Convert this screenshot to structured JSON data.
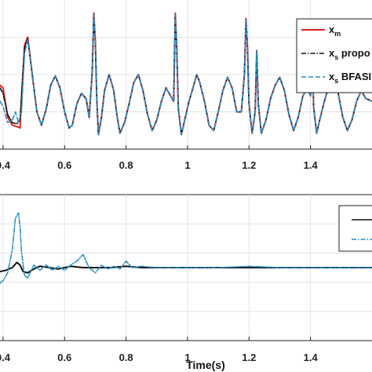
{
  "chart_data": [
    {
      "type": "line",
      "panel": "top",
      "title": "",
      "xlabel": "",
      "ylabel": "",
      "xlim": [
        0.39,
        1.6
      ],
      "ylim": [
        0,
        1
      ],
      "xticks": [
        0.4,
        0.6,
        0.8,
        1,
        1.2,
        1.4
      ],
      "xtick_labels": [
        "0.4",
        "0.6",
        "0.8",
        "1",
        "1.2",
        "1.4"
      ],
      "grid": true,
      "legend_position": "top-right",
      "legend": [
        {
          "main": "x",
          "sub": "m",
          "tail": ""
        },
        {
          "main": "x",
          "sub": "s",
          "tail": " propo"
        },
        {
          "main": "x",
          "sub": "s",
          "tail": " BFASI"
        }
      ],
      "series": [
        {
          "color": "#e02020",
          "dash": "",
          "x": [
            0.39,
            0.4,
            0.415,
            0.43,
            0.445,
            0.455,
            0.46,
            0.47,
            0.48,
            0.495,
            0.51,
            0.525,
            0.54,
            0.555,
            0.57,
            0.585,
            0.6,
            0.615,
            0.625,
            0.64,
            0.655,
            0.67,
            0.68,
            0.69,
            0.695,
            0.7,
            0.705,
            0.71,
            0.72,
            0.73,
            0.745,
            0.76,
            0.77,
            0.78,
            0.795,
            0.81,
            0.825,
            0.84,
            0.855,
            0.87,
            0.885,
            0.9,
            0.915,
            0.93,
            0.945,
            0.955,
            0.96,
            0.965,
            0.97,
            0.98,
            0.99,
            1.005,
            1.02,
            1.03,
            1.04,
            1.055,
            1.07,
            1.085,
            1.1,
            1.115,
            1.13,
            1.145,
            1.16,
            1.175,
            1.185,
            1.19,
            1.195,
            1.2,
            1.21,
            1.22,
            1.225,
            1.23,
            1.24,
            1.255,
            1.27,
            1.285,
            1.3,
            1.315,
            1.33,
            1.345,
            1.36,
            1.375,
            1.39,
            1.4,
            1.405,
            1.41,
            1.42,
            1.43,
            1.445,
            1.46,
            1.475,
            1.49,
            1.505,
            1.52,
            1.535,
            1.55,
            1.565,
            1.58,
            1.6
          ],
          "y": [
            0.42,
            0.4,
            0.18,
            0.12,
            0.11,
            0.1,
            0.32,
            0.72,
            0.78,
            0.5,
            0.22,
            0.12,
            0.24,
            0.42,
            0.49,
            0.4,
            0.22,
            0.1,
            0.12,
            0.28,
            0.36,
            0.32,
            0.18,
            0.52,
            0.96,
            0.76,
            0.3,
            0.05,
            0.18,
            0.38,
            0.5,
            0.38,
            0.2,
            0.06,
            0.14,
            0.28,
            0.44,
            0.5,
            0.38,
            0.2,
            0.08,
            0.16,
            0.3,
            0.4,
            0.34,
            0.3,
            0.96,
            0.7,
            0.25,
            0.05,
            0.15,
            0.3,
            0.42,
            0.5,
            0.44,
            0.3,
            0.12,
            0.08,
            0.22,
            0.38,
            0.48,
            0.4,
            0.22,
            0.22,
            0.5,
            0.92,
            0.7,
            0.28,
            0.06,
            0.22,
            0.68,
            0.28,
            0.06,
            0.16,
            0.32,
            0.42,
            0.48,
            0.38,
            0.2,
            0.08,
            0.18,
            0.34,
            0.4,
            0.34,
            0.74,
            0.26,
            0.06,
            0.16,
            0.3,
            0.42,
            0.48,
            0.36,
            0.18,
            0.08,
            0.16,
            0.3,
            0.38,
            0.32,
            0.3
          ]
        },
        {
          "color": "#111111",
          "dash": "6,2,1.5,2",
          "x": [
            0.39,
            0.4,
            0.415,
            0.43,
            0.445,
            0.455,
            0.46,
            0.47,
            0.48,
            0.495,
            0.51,
            0.525,
            0.54,
            0.555,
            0.57,
            0.585,
            0.6,
            0.615,
            0.625,
            0.64,
            0.655,
            0.67,
            0.68,
            0.69,
            0.695,
            0.7,
            0.705,
            0.71,
            0.72,
            0.73,
            0.745,
            0.76,
            0.77,
            0.78,
            0.795,
            0.81,
            0.825,
            0.84,
            0.855,
            0.87,
            0.885,
            0.9,
            0.915,
            0.93,
            0.945,
            0.955,
            0.96,
            0.965,
            0.97,
            0.98,
            0.99,
            1.005,
            1.02,
            1.03,
            1.04,
            1.055,
            1.07,
            1.085,
            1.1,
            1.115,
            1.13,
            1.145,
            1.16,
            1.175,
            1.185,
            1.19,
            1.195,
            1.2,
            1.21,
            1.22,
            1.225,
            1.23,
            1.24,
            1.255,
            1.27,
            1.285,
            1.3,
            1.315,
            1.33,
            1.345,
            1.36,
            1.375,
            1.39,
            1.4,
            1.405,
            1.41,
            1.42,
            1.43,
            1.445,
            1.46,
            1.475,
            1.49,
            1.505,
            1.52,
            1.535,
            1.55,
            1.565,
            1.58,
            1.6
          ],
          "y": [
            0.4,
            0.36,
            0.2,
            0.14,
            0.13,
            0.16,
            0.34,
            0.7,
            0.77,
            0.5,
            0.22,
            0.12,
            0.24,
            0.42,
            0.49,
            0.4,
            0.22,
            0.1,
            0.12,
            0.28,
            0.36,
            0.32,
            0.18,
            0.52,
            0.95,
            0.76,
            0.3,
            0.05,
            0.18,
            0.38,
            0.5,
            0.38,
            0.2,
            0.06,
            0.14,
            0.28,
            0.44,
            0.5,
            0.38,
            0.2,
            0.08,
            0.16,
            0.3,
            0.4,
            0.34,
            0.3,
            0.95,
            0.7,
            0.25,
            0.05,
            0.15,
            0.3,
            0.42,
            0.5,
            0.44,
            0.3,
            0.12,
            0.08,
            0.22,
            0.38,
            0.48,
            0.4,
            0.22,
            0.22,
            0.5,
            0.91,
            0.7,
            0.28,
            0.06,
            0.22,
            0.68,
            0.28,
            0.06,
            0.16,
            0.32,
            0.42,
            0.48,
            0.38,
            0.2,
            0.08,
            0.18,
            0.34,
            0.4,
            0.34,
            0.74,
            0.26,
            0.06,
            0.16,
            0.3,
            0.42,
            0.48,
            0.36,
            0.18,
            0.08,
            0.16,
            0.3,
            0.38,
            0.32,
            0.3
          ]
        },
        {
          "color": "#2a8fc8",
          "dash": "6,3",
          "x": [
            0.39,
            0.4,
            0.415,
            0.43,
            0.44,
            0.45,
            0.46,
            0.47,
            0.48,
            0.495,
            0.51,
            0.525,
            0.54,
            0.555,
            0.57,
            0.585,
            0.6,
            0.615,
            0.625,
            0.64,
            0.655,
            0.67,
            0.68,
            0.69,
            0.695,
            0.7,
            0.705,
            0.71,
            0.72,
            0.73,
            0.745,
            0.76,
            0.77,
            0.78,
            0.795,
            0.81,
            0.825,
            0.84,
            0.855,
            0.87,
            0.885,
            0.9,
            0.915,
            0.93,
            0.945,
            0.955,
            0.96,
            0.965,
            0.97,
            0.98,
            0.99,
            1.005,
            1.02,
            1.03,
            1.04,
            1.055,
            1.07,
            1.085,
            1.1,
            1.115,
            1.13,
            1.145,
            1.16,
            1.175,
            1.185,
            1.19,
            1.195,
            1.2,
            1.21,
            1.22,
            1.225,
            1.23,
            1.24,
            1.255,
            1.27,
            1.285,
            1.3,
            1.315,
            1.33,
            1.345,
            1.36,
            1.375,
            1.39,
            1.4,
            1.405,
            1.41,
            1.42,
            1.43,
            1.445,
            1.46,
            1.475,
            1.49,
            1.505,
            1.52,
            1.535,
            1.55,
            1.565,
            1.58,
            1.6
          ],
          "y": [
            0.3,
            0.26,
            0.14,
            0.16,
            0.22,
            0.14,
            0.22,
            0.66,
            0.76,
            0.5,
            0.22,
            0.12,
            0.24,
            0.42,
            0.49,
            0.4,
            0.22,
            0.1,
            0.12,
            0.28,
            0.36,
            0.32,
            0.18,
            0.52,
            0.95,
            0.76,
            0.3,
            0.05,
            0.18,
            0.38,
            0.5,
            0.38,
            0.2,
            0.06,
            0.14,
            0.28,
            0.44,
            0.5,
            0.38,
            0.2,
            0.08,
            0.16,
            0.3,
            0.4,
            0.34,
            0.3,
            0.95,
            0.7,
            0.25,
            0.05,
            0.15,
            0.3,
            0.42,
            0.5,
            0.44,
            0.3,
            0.12,
            0.08,
            0.22,
            0.38,
            0.48,
            0.4,
            0.22,
            0.22,
            0.5,
            0.91,
            0.7,
            0.28,
            0.06,
            0.22,
            0.68,
            0.28,
            0.06,
            0.16,
            0.32,
            0.42,
            0.48,
            0.38,
            0.2,
            0.08,
            0.18,
            0.34,
            0.4,
            0.34,
            0.74,
            0.26,
            0.06,
            0.16,
            0.3,
            0.42,
            0.48,
            0.36,
            0.18,
            0.08,
            0.16,
            0.3,
            0.38,
            0.32,
            0.3
          ]
        }
      ]
    },
    {
      "type": "line",
      "panel": "bottom",
      "title": "",
      "xlabel": "Time(s)",
      "ylabel": "",
      "xlim": [
        0.39,
        1.6
      ],
      "ylim": [
        0,
        1
      ],
      "xticks": [
        0.4,
        0.6,
        0.8,
        1,
        1.2,
        1.4
      ],
      "xtick_labels": [
        "0.4",
        "0.6",
        "0.8",
        "1",
        "1.2",
        "1.4"
      ],
      "grid": true,
      "legend_position": "top-right",
      "legend": [
        {
          "main": "",
          "sub": "",
          "tail": ""
        },
        {
          "main": "",
          "sub": "",
          "tail": ""
        }
      ],
      "series": [
        {
          "color": "#111111",
          "dash": "",
          "x": [
            0.39,
            0.41,
            0.43,
            0.445,
            0.455,
            0.465,
            0.48,
            0.5,
            0.52,
            0.55,
            0.58,
            0.62,
            0.66,
            0.7,
            0.75,
            0.8,
            0.85,
            0.9,
            1.0,
            1.1,
            1.2,
            1.3,
            1.4,
            1.5,
            1.6
          ],
          "y": [
            0.47,
            0.48,
            0.5,
            0.54,
            0.52,
            0.47,
            0.46,
            0.49,
            0.51,
            0.5,
            0.49,
            0.51,
            0.5,
            0.5,
            0.5,
            0.51,
            0.5,
            0.5,
            0.5,
            0.5,
            0.5,
            0.5,
            0.5,
            0.5,
            0.5
          ]
        },
        {
          "color": "#2a8fc8",
          "dash": "6,2,1.5,2",
          "x": [
            0.39,
            0.4,
            0.415,
            0.43,
            0.44,
            0.45,
            0.455,
            0.46,
            0.47,
            0.48,
            0.49,
            0.5,
            0.52,
            0.54,
            0.56,
            0.58,
            0.6,
            0.62,
            0.64,
            0.66,
            0.68,
            0.7,
            0.72,
            0.74,
            0.76,
            0.78,
            0.8,
            0.82,
            0.85,
            0.9,
            1.0,
            1.1,
            1.2,
            1.3,
            1.4,
            1.5,
            1.6
          ],
          "y": [
            0.38,
            0.4,
            0.46,
            0.64,
            0.88,
            0.92,
            0.82,
            0.62,
            0.44,
            0.42,
            0.47,
            0.52,
            0.48,
            0.52,
            0.48,
            0.51,
            0.48,
            0.52,
            0.55,
            0.6,
            0.5,
            0.46,
            0.52,
            0.49,
            0.51,
            0.49,
            0.55,
            0.5,
            0.51,
            0.5,
            0.5,
            0.5,
            0.51,
            0.5,
            0.5,
            0.5,
            0.5
          ]
        }
      ]
    }
  ]
}
